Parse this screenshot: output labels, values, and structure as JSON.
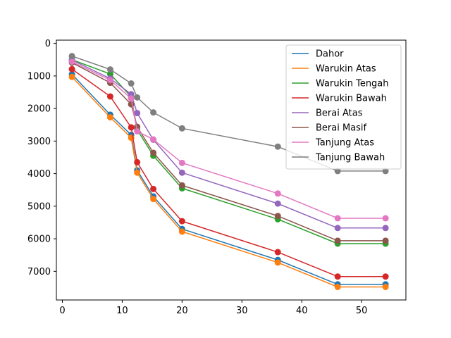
{
  "chart_data": {
    "type": "line",
    "title": "",
    "xlabel": "",
    "ylabel": "",
    "xlim": [
      -1.0,
      57.4
    ],
    "ylim": [
      7880,
      -100
    ],
    "y_inverted": true,
    "x_ticks": [
      0,
      10,
      20,
      30,
      40,
      50
    ],
    "y_ticks": [
      0,
      1000,
      2000,
      3000,
      4000,
      5000,
      6000,
      7000
    ],
    "grid": false,
    "legend_position": "upper right",
    "x": [
      1.6,
      8,
      11.5,
      12.5,
      15.2,
      20,
      36,
      46,
      54
    ],
    "series": [
      {
        "name": "Dahor",
        "color": "#1f77b4",
        "values": [
          950,
          2190,
          2810,
          3900,
          4700,
          5700,
          6650,
          7400,
          7400
        ]
      },
      {
        "name": "Warukin Atas",
        "color": "#ff7f0e",
        "values": [
          1030,
          2270,
          2900,
          3970,
          4780,
          5780,
          6730,
          7480,
          7480
        ]
      },
      {
        "name": "Warukin Tengah",
        "color": "#2ca02c",
        "values": [
          500,
          940,
          1640,
          2650,
          3450,
          4450,
          5400,
          6150,
          6150
        ]
      },
      {
        "name": "Warukin Bawah",
        "color": "#d62728",
        "values": [
          790,
          1630,
          2580,
          3650,
          4470,
          5460,
          6410,
          7160,
          7160
        ]
      },
      {
        "name": "Berai Atas",
        "color": "#9467bd",
        "values": [
          510,
          1080,
          1560,
          2140,
          2960,
          3970,
          4920,
          5670,
          5670
        ]
      },
      {
        "name": "Berai Masif",
        "color": "#8c564b",
        "values": [
          590,
          1210,
          1870,
          2560,
          3360,
          4360,
          5300,
          6060,
          6060
        ]
      },
      {
        "name": "Tanjung Atas",
        "color": "#e377c2",
        "values": [
          560,
          1130,
          1690,
          2700,
          2950,
          3670,
          4610,
          5370,
          5370
        ]
      },
      {
        "name": "Tanjung Bawah",
        "color": "#7f7f7f",
        "values": [
          390,
          800,
          1230,
          1660,
          2120,
          2610,
          3170,
          3920,
          3920
        ]
      }
    ]
  }
}
